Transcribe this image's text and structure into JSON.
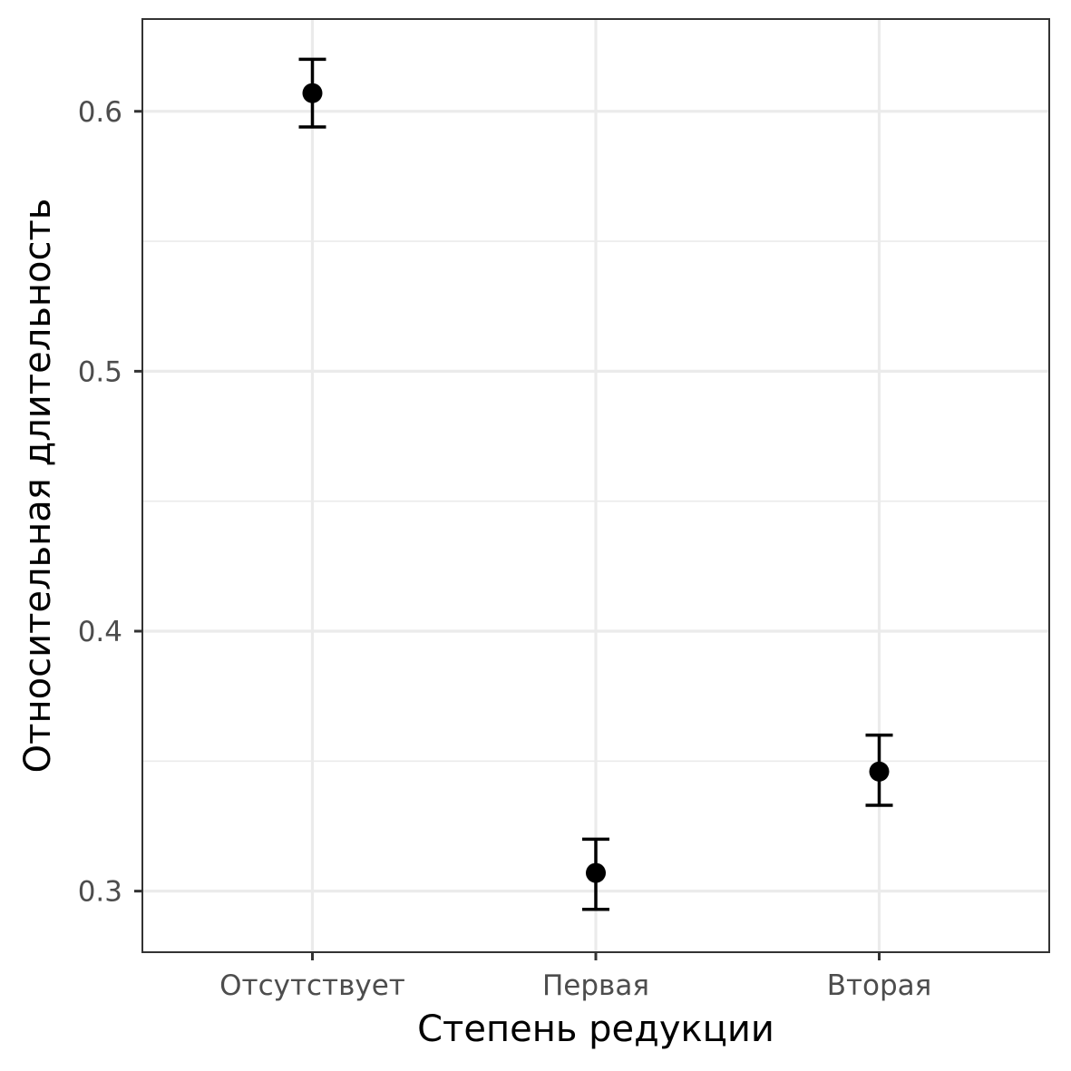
{
  "chart_data": {
    "type": "scatter",
    "title": "",
    "xlabel": "Степень редукции",
    "ylabel": "Относительная длительность",
    "categories": [
      "Отсутствует",
      "Первая",
      "Вторая"
    ],
    "series": [
      {
        "values": [
          0.607,
          0.307,
          0.346
        ],
        "error_low": [
          0.594,
          0.293,
          0.333
        ],
        "error_high": [
          0.62,
          0.32,
          0.36
        ]
      }
    ],
    "ylim": [
      0.2765,
      0.6355
    ],
    "yticks": [
      0.3,
      0.4,
      0.5,
      0.6
    ],
    "ytick_labels": [
      "0.3",
      "0.4",
      "0.5",
      "0.6"
    ],
    "grid": true,
    "theme_colors": {
      "grid": "#ebebeb",
      "border": "#333333",
      "point": "#000000"
    }
  }
}
